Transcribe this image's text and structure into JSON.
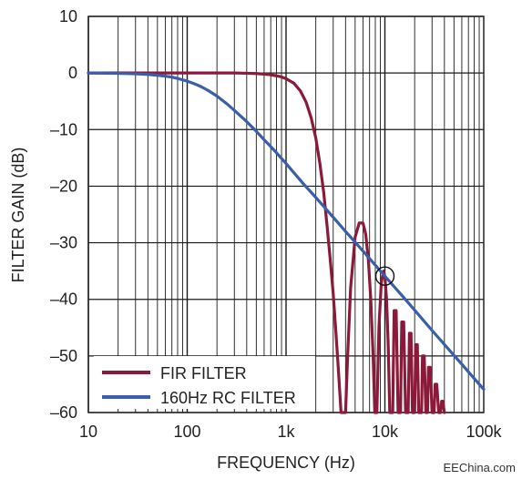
{
  "chart_data": {
    "type": "line",
    "xlabel": "FREQUENCY (Hz)",
    "ylabel": "FILTER GAIN (dB)",
    "xscale": "log",
    "xlim": [
      10,
      100000
    ],
    "ylim": [
      -60,
      10
    ],
    "grid": true,
    "legend_position": "bottom-left",
    "x_ticks": [
      {
        "value": 10,
        "label": "10"
      },
      {
        "value": 100,
        "label": "100"
      },
      {
        "value": 1000,
        "label": "1k"
      },
      {
        "value": 10000,
        "label": "10k"
      },
      {
        "value": 100000,
        "label": "100k"
      }
    ],
    "y_ticks": [
      {
        "value": 10,
        "label": "10"
      },
      {
        "value": 0,
        "label": "0"
      },
      {
        "value": -10,
        "label": "–10"
      },
      {
        "value": -20,
        "label": "–20"
      },
      {
        "value": -30,
        "label": "–30"
      },
      {
        "value": -40,
        "label": "–40"
      },
      {
        "value": -50,
        "label": "–50"
      },
      {
        "value": -60,
        "label": "–60"
      }
    ],
    "series": [
      {
        "name": "FIR FILTER",
        "color": "#8b1a3a",
        "points": [
          [
            10,
            0
          ],
          [
            100,
            0
          ],
          [
            200,
            0
          ],
          [
            300,
            0
          ],
          [
            400,
            -0.05
          ],
          [
            500,
            -0.1
          ],
          [
            600,
            -0.2
          ],
          [
            700,
            -0.3
          ],
          [
            800,
            -0.5
          ],
          [
            900,
            -0.7
          ],
          [
            1000,
            -1.0
          ],
          [
            1200,
            -1.8
          ],
          [
            1400,
            -3.2
          ],
          [
            1600,
            -5.2
          ],
          [
            1800,
            -8
          ],
          [
            2000,
            -11.5
          ],
          [
            2200,
            -16
          ],
          [
            2400,
            -21
          ],
          [
            2600,
            -27
          ],
          [
            2800,
            -33
          ],
          [
            3000,
            -39
          ],
          [
            3200,
            -46
          ],
          [
            3400,
            -53
          ],
          [
            3600,
            -60
          ],
          [
            4000,
            -60
          ],
          [
            4200,
            -50
          ],
          [
            4500,
            -38
          ],
          [
            5000,
            -29
          ],
          [
            5500,
            -26.5
          ],
          [
            6000,
            -26.5
          ],
          [
            6400,
            -28.5
          ],
          [
            6800,
            -33
          ],
          [
            7200,
            -40
          ],
          [
            7600,
            -50
          ],
          [
            7900,
            -60
          ],
          [
            8300,
            -60
          ],
          [
            8700,
            -45
          ],
          [
            9200,
            -37
          ],
          [
            9700,
            -35
          ],
          [
            10000,
            -36
          ],
          [
            10400,
            -40
          ],
          [
            10800,
            -48
          ],
          [
            11200,
            -60
          ],
          [
            12000,
            -60
          ],
          [
            12400,
            -42
          ],
          [
            13000,
            -42
          ],
          [
            13600,
            -60
          ],
          [
            14400,
            -60
          ],
          [
            14800,
            -44
          ],
          [
            15500,
            -44
          ],
          [
            16200,
            -60
          ],
          [
            17200,
            -60
          ],
          [
            17700,
            -46
          ],
          [
            18400,
            -46
          ],
          [
            19000,
            -60
          ],
          [
            20000,
            -60
          ],
          [
            20500,
            -48
          ],
          [
            21300,
            -48
          ],
          [
            22000,
            -60
          ],
          [
            23500,
            -60
          ],
          [
            24000,
            -50
          ],
          [
            25000,
            -50
          ],
          [
            26000,
            -60
          ],
          [
            27000,
            -60
          ],
          [
            27600,
            -52
          ],
          [
            28800,
            -52
          ],
          [
            30000,
            -60
          ],
          [
            31500,
            -60
          ],
          [
            32200,
            -55
          ],
          [
            33500,
            -55
          ],
          [
            35000,
            -60
          ],
          [
            36500,
            -60
          ],
          [
            37500,
            -58
          ],
          [
            38500,
            -58
          ],
          [
            40000,
            -60
          ]
        ]
      },
      {
        "name": "160Hz RC FILTER",
        "color": "#3a5fa8",
        "points": [
          [
            10,
            0
          ],
          [
            15,
            -0.04
          ],
          [
            20,
            -0.07
          ],
          [
            30,
            -0.15
          ],
          [
            40,
            -0.26
          ],
          [
            50,
            -0.4
          ],
          [
            60,
            -0.56
          ],
          [
            70,
            -0.73
          ],
          [
            80,
            -0.97
          ],
          [
            100,
            -1.44
          ],
          [
            120,
            -1.94
          ],
          [
            140,
            -2.47
          ],
          [
            160,
            -3.01
          ],
          [
            200,
            -4.08
          ],
          [
            250,
            -5.4
          ],
          [
            300,
            -6.6
          ],
          [
            400,
            -8.6
          ],
          [
            500,
            -10.3
          ],
          [
            600,
            -11.8
          ],
          [
            700,
            -13.0
          ],
          [
            800,
            -14.1
          ],
          [
            1000,
            -16.0
          ],
          [
            1500,
            -19.6
          ],
          [
            2000,
            -22.0
          ],
          [
            3000,
            -25.5
          ],
          [
            4000,
            -28.0
          ],
          [
            5000,
            -29.9
          ],
          [
            7000,
            -32.8
          ],
          [
            10000,
            -35.9
          ],
          [
            15000,
            -39.4
          ],
          [
            20000,
            -41.9
          ],
          [
            30000,
            -45.5
          ],
          [
            50000,
            -49.9
          ],
          [
            70000,
            -52.8
          ],
          [
            100000,
            -55.9
          ]
        ]
      }
    ],
    "annotations": [
      {
        "type": "circle",
        "x": 10000,
        "y": -35.9
      }
    ]
  },
  "watermark": "EEChina.com"
}
